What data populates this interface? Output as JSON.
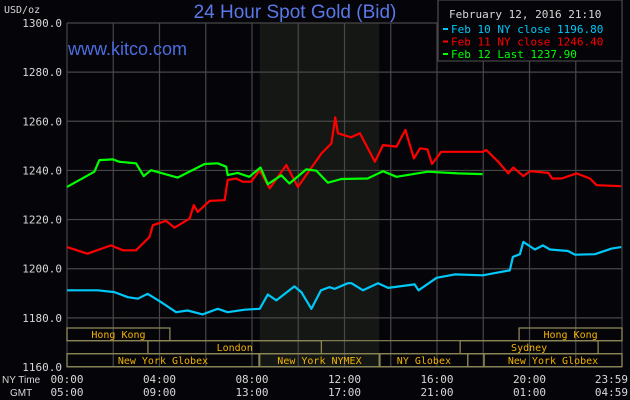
{
  "chart_data": {
    "type": "line",
    "title": "24 Hour Spot Gold (Bid)",
    "timestamp": "February 12, 2016 21:10",
    "watermark": "www.kitco.com",
    "ylabel": "USD/oz",
    "ylim": [
      1160,
      1300
    ],
    "yticks": [
      "1300.0",
      "1280.0",
      "1260.0",
      "1240.0",
      "1220.0",
      "1200.0",
      "1180.0",
      "1160.0"
    ],
    "xlim": [
      "00:00",
      "24:00"
    ],
    "grid": true,
    "legend_position": "top-right",
    "xaxis_rows": [
      {
        "label": "NY Time",
        "ticks": [
          "00:00",
          "04:00",
          "08:00",
          "12:00",
          "16:00",
          "20:00",
          "23:59"
        ]
      },
      {
        "label": "GMT",
        "ticks": [
          "05:00",
          "09:00",
          "13:00",
          "17:00",
          "21:00",
          "01:00",
          "04:59"
        ]
      }
    ],
    "highlighted_period": [
      "08:20",
      "13:30"
    ],
    "sessions": [
      {
        "name": "Hong Kong",
        "row": 1,
        "start": "00:00",
        "end": "04:27"
      },
      {
        "name": "Hong Kong",
        "row": 1,
        "start": "19:33",
        "end": "24:00"
      },
      {
        "name": "London",
        "row": 2,
        "start": "03:30",
        "end": "11:00"
      },
      {
        "name": "Sydney",
        "row": 2,
        "start": "17:00",
        "end": "22:58"
      },
      {
        "name": "New York Globex",
        "row": 3,
        "start": "00:00",
        "end": "08:18"
      },
      {
        "name": "New York NYMEX",
        "row": 3,
        "start": "08:20",
        "end": "13:30"
      },
      {
        "name": "NY Globex",
        "row": 3,
        "start": "13:32",
        "end": "17:20"
      },
      {
        "name": "",
        "row": 3,
        "start": "17:20",
        "end": "18:02"
      },
      {
        "name": "New York Globex",
        "row": 3,
        "start": "18:02",
        "end": "24:00"
      }
    ],
    "series": [
      {
        "name": "Feb 10 NY close",
        "value": "1196.80",
        "color": "#00c8f8",
        "points": [
          [
            "00:00",
            1191.2
          ],
          [
            "01:20",
            1191.2
          ],
          [
            "02:03",
            1190.5
          ],
          [
            "02:38",
            1188.4
          ],
          [
            "03:04",
            1187.8
          ],
          [
            "03:29",
            1189.8
          ],
          [
            "04:04",
            1186.4
          ],
          [
            "04:43",
            1182.3
          ],
          [
            "05:13",
            1183.0
          ],
          [
            "05:52",
            1181.4
          ],
          [
            "06:31",
            1183.7
          ],
          [
            "06:57",
            1182.3
          ],
          [
            "07:41",
            1183.3
          ],
          [
            "08:20",
            1183.7
          ],
          [
            "08:41",
            1189.5
          ],
          [
            "09:03",
            1187.1
          ],
          [
            "09:50",
            1192.8
          ],
          [
            "10:08",
            1190.5
          ],
          [
            "10:34",
            1183.7
          ],
          [
            "10:59",
            1191.2
          ],
          [
            "11:21",
            1192.5
          ],
          [
            "11:34",
            1191.8
          ],
          [
            "12:09",
            1194.1
          ],
          [
            "12:18",
            1194.1
          ],
          [
            "12:48",
            1191.2
          ],
          [
            "13:27",
            1194.1
          ],
          [
            "13:53",
            1192.2
          ],
          [
            "15:02",
            1193.6
          ],
          [
            "15:12",
            1191.2
          ],
          [
            "15:59",
            1196.3
          ],
          [
            "16:46",
            1197.7
          ],
          [
            "17:59",
            1197.3
          ],
          [
            "18:30",
            1198.2
          ],
          [
            "19:09",
            1199.3
          ],
          [
            "19:17",
            1204.8
          ],
          [
            "19:35",
            1205.9
          ],
          [
            "19:44",
            1210.9
          ],
          [
            "20:14",
            1207.8
          ],
          [
            "20:35",
            1209.5
          ],
          [
            "20:53",
            1207.8
          ],
          [
            "21:40",
            1207.2
          ],
          [
            "21:58",
            1205.7
          ],
          [
            "22:50",
            1205.9
          ],
          [
            "23:33",
            1208.2
          ],
          [
            "23:58",
            1208.8
          ]
        ]
      },
      {
        "name": "Feb 11 NY close",
        "value": "1246.40",
        "color": "#ff0000",
        "points": [
          [
            "00:00",
            1208.8
          ],
          [
            "00:53",
            1206.1
          ],
          [
            "01:54",
            1209.5
          ],
          [
            "02:25",
            1207.5
          ],
          [
            "02:59",
            1207.5
          ],
          [
            "03:34",
            1212.9
          ],
          [
            "03:43",
            1217.7
          ],
          [
            "04:17",
            1219.5
          ],
          [
            "04:39",
            1216.7
          ],
          [
            "05:18",
            1220.4
          ],
          [
            "05:29",
            1225.9
          ],
          [
            "05:39",
            1223.1
          ],
          [
            "06:10",
            1227.6
          ],
          [
            "06:49",
            1227.9
          ],
          [
            "06:57",
            1236.1
          ],
          [
            "07:19",
            1236.7
          ],
          [
            "07:36",
            1235.4
          ],
          [
            "07:58",
            1235.4
          ],
          [
            "08:20",
            1240.1
          ],
          [
            "08:46",
            1232.7
          ],
          [
            "09:29",
            1242.2
          ],
          [
            "09:59",
            1233.3
          ],
          [
            "11:00",
            1246.9
          ],
          [
            "11:26",
            1251.0
          ],
          [
            "11:36",
            1261.6
          ],
          [
            "11:43",
            1255.1
          ],
          [
            "12:17",
            1253.5
          ],
          [
            "12:40",
            1255.1
          ],
          [
            "13:19",
            1243.5
          ],
          [
            "13:40",
            1250.3
          ],
          [
            "14:15",
            1249.7
          ],
          [
            "14:38",
            1256.5
          ],
          [
            "15:00",
            1244.9
          ],
          [
            "15:16",
            1249.0
          ],
          [
            "15:35",
            1248.6
          ],
          [
            "15:47",
            1242.6
          ],
          [
            "16:11",
            1247.6
          ],
          [
            "16:55",
            1247.6
          ],
          [
            "17:59",
            1247.6
          ],
          [
            "18:08",
            1248.3
          ],
          [
            "18:39",
            1243.5
          ],
          [
            "19:05",
            1238.8
          ],
          [
            "19:18",
            1241.2
          ],
          [
            "19:44",
            1237.7
          ],
          [
            "20:01",
            1239.7
          ],
          [
            "20:49",
            1239.0
          ],
          [
            "20:59",
            1236.7
          ],
          [
            "21:23",
            1236.7
          ],
          [
            "22:02",
            1238.8
          ],
          [
            "22:37",
            1236.7
          ],
          [
            "22:54",
            1234.0
          ],
          [
            "23:58",
            1233.6
          ]
        ]
      },
      {
        "name": "Feb 12 Last",
        "value": "1237.90",
        "color": "#00ff00",
        "points": [
          [
            "00:00",
            1233.3
          ],
          [
            "01:11",
            1239.5
          ],
          [
            "01:24",
            1244.2
          ],
          [
            "01:59",
            1244.5
          ],
          [
            "02:16",
            1243.5
          ],
          [
            "02:59",
            1242.9
          ],
          [
            "03:19",
            1237.7
          ],
          [
            "03:38",
            1240.1
          ],
          [
            "04:47",
            1237.1
          ],
          [
            "05:57",
            1242.6
          ],
          [
            "06:31",
            1242.9
          ],
          [
            "06:53",
            1241.5
          ],
          [
            "06:57",
            1238.1
          ],
          [
            "07:23",
            1239.0
          ],
          [
            "07:53",
            1237.4
          ],
          [
            "08:22",
            1241.2
          ],
          [
            "08:41",
            1234.4
          ],
          [
            "09:16",
            1238.0
          ],
          [
            "09:37",
            1234.7
          ],
          [
            "10:21",
            1240.4
          ],
          [
            "10:47",
            1239.9
          ],
          [
            "11:17",
            1235.0
          ],
          [
            "11:52",
            1236.5
          ],
          [
            "13:00",
            1236.7
          ],
          [
            "13:40",
            1239.7
          ],
          [
            "14:15",
            1237.4
          ],
          [
            "15:36",
            1239.5
          ],
          [
            "16:54",
            1238.8
          ],
          [
            "17:58",
            1238.5
          ]
        ]
      }
    ]
  }
}
